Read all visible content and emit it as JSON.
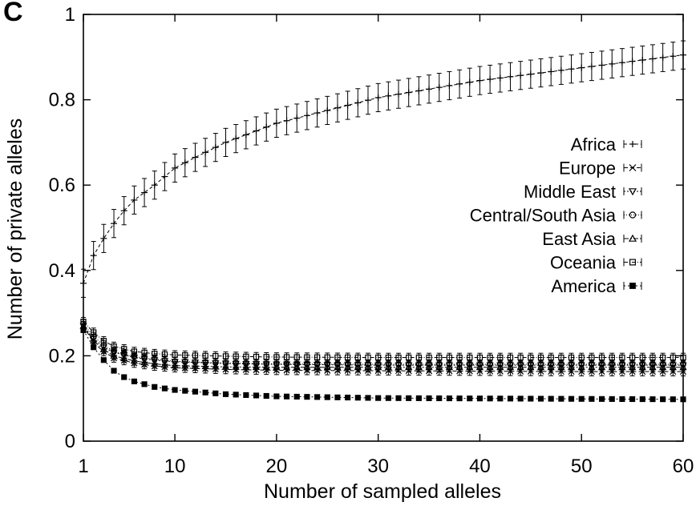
{
  "panel_label": "C",
  "chart_data": {
    "type": "line",
    "title": "",
    "xlabel": "Number of sampled alleles",
    "ylabel": "Number of private alleles",
    "xlim": [
      1,
      60
    ],
    "ylim": [
      0,
      1
    ],
    "xticks": [
      1,
      10,
      20,
      30,
      40,
      50,
      60
    ],
    "yticks": [
      0,
      0.2,
      0.4,
      0.6,
      0.8,
      1
    ],
    "ytick_labels": [
      "0",
      "0.2",
      "0.4",
      "0.6",
      "0.8",
      "1"
    ],
    "legend_position": "right, middle",
    "error_bars": true,
    "marker_every": 1,
    "x_range": [
      1,
      60
    ],
    "series": [
      {
        "name": "Africa",
        "marker": "plus",
        "dash": "4,3",
        "curve": [
          [
            1,
            0.37
          ],
          [
            2,
            0.435
          ],
          [
            3,
            0.475
          ],
          [
            4,
            0.51
          ],
          [
            5,
            0.54
          ],
          [
            6,
            0.565
          ],
          [
            8,
            0.6
          ],
          [
            10,
            0.64
          ],
          [
            12,
            0.665
          ],
          [
            15,
            0.7
          ],
          [
            20,
            0.745
          ],
          [
            25,
            0.775
          ],
          [
            30,
            0.805
          ],
          [
            35,
            0.825
          ],
          [
            40,
            0.845
          ],
          [
            45,
            0.86
          ],
          [
            50,
            0.875
          ],
          [
            55,
            0.89
          ],
          [
            60,
            0.905
          ]
        ],
        "err": 0.033
      },
      {
        "name": "Europe",
        "marker": "x",
        "dash": "5,3",
        "curve": [
          [
            1,
            0.27
          ],
          [
            2,
            0.23
          ],
          [
            3,
            0.21
          ],
          [
            4,
            0.195
          ],
          [
            6,
            0.183
          ],
          [
            8,
            0.176
          ],
          [
            10,
            0.172
          ],
          [
            15,
            0.168
          ],
          [
            20,
            0.166
          ],
          [
            30,
            0.165
          ],
          [
            40,
            0.164
          ],
          [
            50,
            0.163
          ],
          [
            60,
            0.163
          ]
        ],
        "err": 0.01
      },
      {
        "name": "Middle East",
        "marker": "triangle-down",
        "dash": "2,2",
        "curve": [
          [
            1,
            0.27
          ],
          [
            2,
            0.24
          ],
          [
            3,
            0.22
          ],
          [
            4,
            0.208
          ],
          [
            6,
            0.196
          ],
          [
            8,
            0.19
          ],
          [
            10,
            0.186
          ],
          [
            15,
            0.182
          ],
          [
            20,
            0.18
          ],
          [
            30,
            0.178
          ],
          [
            40,
            0.178
          ],
          [
            50,
            0.178
          ],
          [
            60,
            0.178
          ]
        ],
        "err": 0.01
      },
      {
        "name": "Central/South Asia",
        "marker": "circle",
        "dash": "1,2",
        "curve": [
          [
            1,
            0.275
          ],
          [
            2,
            0.245
          ],
          [
            3,
            0.225
          ],
          [
            4,
            0.21
          ],
          [
            6,
            0.198
          ],
          [
            8,
            0.192
          ],
          [
            10,
            0.187
          ],
          [
            15,
            0.183
          ],
          [
            20,
            0.181
          ],
          [
            30,
            0.18
          ],
          [
            40,
            0.18
          ],
          [
            50,
            0.18
          ],
          [
            60,
            0.18
          ]
        ],
        "err": 0.01
      },
      {
        "name": "East Asia",
        "marker": "triangle-up",
        "dash": "6,2,2,2",
        "curve": [
          [
            1,
            0.27
          ],
          [
            2,
            0.235
          ],
          [
            3,
            0.215
          ],
          [
            4,
            0.2
          ],
          [
            6,
            0.188
          ],
          [
            8,
            0.181
          ],
          [
            10,
            0.177
          ],
          [
            15,
            0.174
          ],
          [
            20,
            0.173
          ],
          [
            30,
            0.173
          ],
          [
            40,
            0.173
          ],
          [
            50,
            0.173
          ],
          [
            60,
            0.173
          ]
        ],
        "err": 0.01
      },
      {
        "name": "Oceania",
        "marker": "square",
        "dash": "5,2,1,2",
        "curve": [
          [
            1,
            0.28
          ],
          [
            2,
            0.255
          ],
          [
            3,
            0.235
          ],
          [
            4,
            0.222
          ],
          [
            6,
            0.21
          ],
          [
            8,
            0.205
          ],
          [
            10,
            0.202
          ],
          [
            15,
            0.199
          ],
          [
            20,
            0.197
          ],
          [
            30,
            0.196
          ],
          [
            40,
            0.196
          ],
          [
            50,
            0.196
          ],
          [
            60,
            0.196
          ]
        ],
        "err": 0.01
      },
      {
        "name": "America",
        "marker": "square-filled",
        "dash": "2,3",
        "curve": [
          [
            1,
            0.26
          ],
          [
            2,
            0.22
          ],
          [
            3,
            0.19
          ],
          [
            4,
            0.165
          ],
          [
            5,
            0.15
          ],
          [
            6,
            0.14
          ],
          [
            8,
            0.127
          ],
          [
            10,
            0.12
          ],
          [
            15,
            0.11
          ],
          [
            20,
            0.105
          ],
          [
            30,
            0.101
          ],
          [
            40,
            0.1
          ],
          [
            50,
            0.099
          ],
          [
            60,
            0.098
          ]
        ],
        "err": 0.004
      }
    ]
  }
}
